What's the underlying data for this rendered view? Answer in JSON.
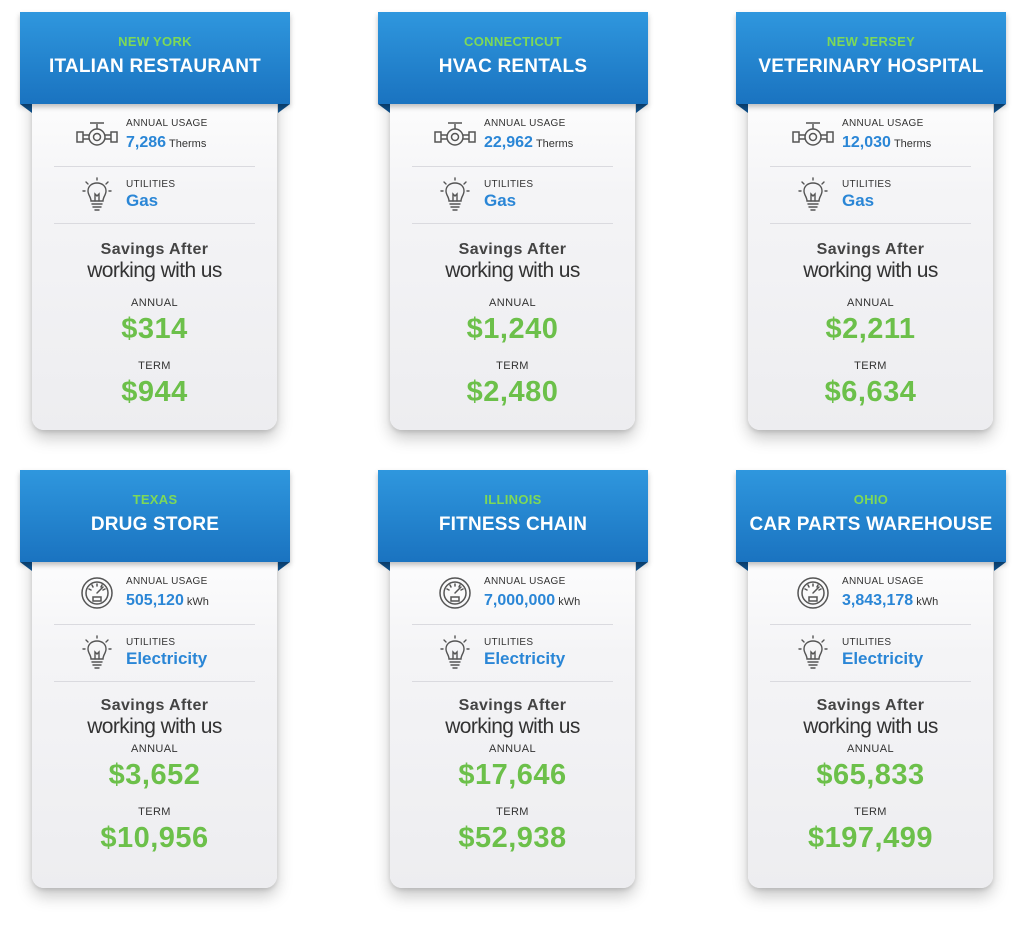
{
  "labels": {
    "annual_usage": "ANNUAL USAGE",
    "utilities": "UTILITIES",
    "savings_line1": "Savings After",
    "savings_line2": "working with us",
    "annual": "ANNUAL",
    "term": "TERM"
  },
  "colors": {
    "ribbon_blue": "#1f80cc",
    "state_green": "#7ed957",
    "value_blue": "#2a86d6",
    "savings_green": "#6cc04a"
  },
  "cards": [
    {
      "state": "NEW YORK",
      "business": "ITALIAN RESTAURANT",
      "usage_icon": "gas-valve-icon",
      "usage_value": "7,286",
      "usage_unit": "Therms",
      "utility": "Gas",
      "annual_savings": "$314",
      "term_savings": "$944"
    },
    {
      "state": "CONNECTICUT",
      "business": "HVAC RENTALS",
      "usage_icon": "gas-valve-icon",
      "usage_value": "22,962",
      "usage_unit": "Therms",
      "utility": "Gas",
      "annual_savings": "$1,240",
      "term_savings": "$2,480"
    },
    {
      "state": "NEW JERSEY",
      "business": "VETERINARY HOSPITAL",
      "usage_icon": "gas-valve-icon",
      "usage_value": "12,030",
      "usage_unit": "Therms",
      "utility": "Gas",
      "annual_savings": "$2,211",
      "term_savings": "$6,634"
    },
    {
      "state": "TEXAS",
      "business": "DRUG STORE",
      "usage_icon": "electric-meter-icon",
      "usage_value": "505,120",
      "usage_unit": "kWh",
      "utility": "Electricity",
      "annual_savings": "$3,652",
      "term_savings": "$10,956"
    },
    {
      "state": "ILLINOIS",
      "business": "FITNESS CHAIN",
      "usage_icon": "electric-meter-icon",
      "usage_value": "7,000,000",
      "usage_unit": "kWh",
      "utility": "Electricity",
      "annual_savings": "$17,646",
      "term_savings": "$52,938"
    },
    {
      "state": "OHIO",
      "business": "CAR PARTS WAREHOUSE",
      "usage_icon": "electric-meter-icon",
      "usage_value": "3,843,178",
      "usage_unit": "kWh",
      "utility": "Electricity",
      "annual_savings": "$65,833",
      "term_savings": "$197,499"
    }
  ]
}
